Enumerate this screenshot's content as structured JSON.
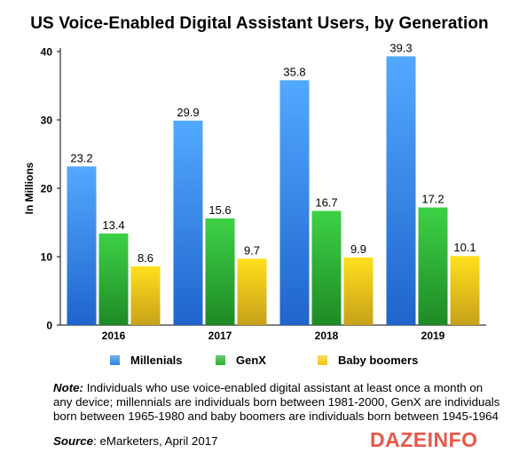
{
  "chart_data": {
    "type": "bar",
    "title": "US Voice-Enabled Digital Assistant Users, by Generation",
    "ylabel": "In Millions",
    "xlabel": "",
    "categories": [
      "2016",
      "2017",
      "2018",
      "2019"
    ],
    "ylim": [
      0,
      40
    ],
    "yticks": [
      0,
      10,
      20,
      30,
      40
    ],
    "grid": false,
    "legend_position": "bottom",
    "series": [
      {
        "name": "Millenials",
        "values": [
          23.2,
          29.9,
          35.8,
          39.3
        ],
        "color": "#2f86e6"
      },
      {
        "name": "GenX",
        "values": [
          13.4,
          15.6,
          16.7,
          17.2
        ],
        "color": "#27b02d"
      },
      {
        "name": "Baby boomers",
        "values": [
          8.6,
          9.7,
          9.9,
          10.1
        ],
        "color": "#f2c811"
      }
    ]
  },
  "note": {
    "label": "Note:",
    "text": "Individuals who use voice-enabled digital assistant at least once a month on any device; millennials are individuals born between 1981-2000, GenX are individuals born between 1965-1980 and baby boomers are individuals born between 1945-1964"
  },
  "source": {
    "label": "Source",
    "text": ": eMarketers, April 2017"
  },
  "brand": {
    "name": "DAZEINFO"
  }
}
